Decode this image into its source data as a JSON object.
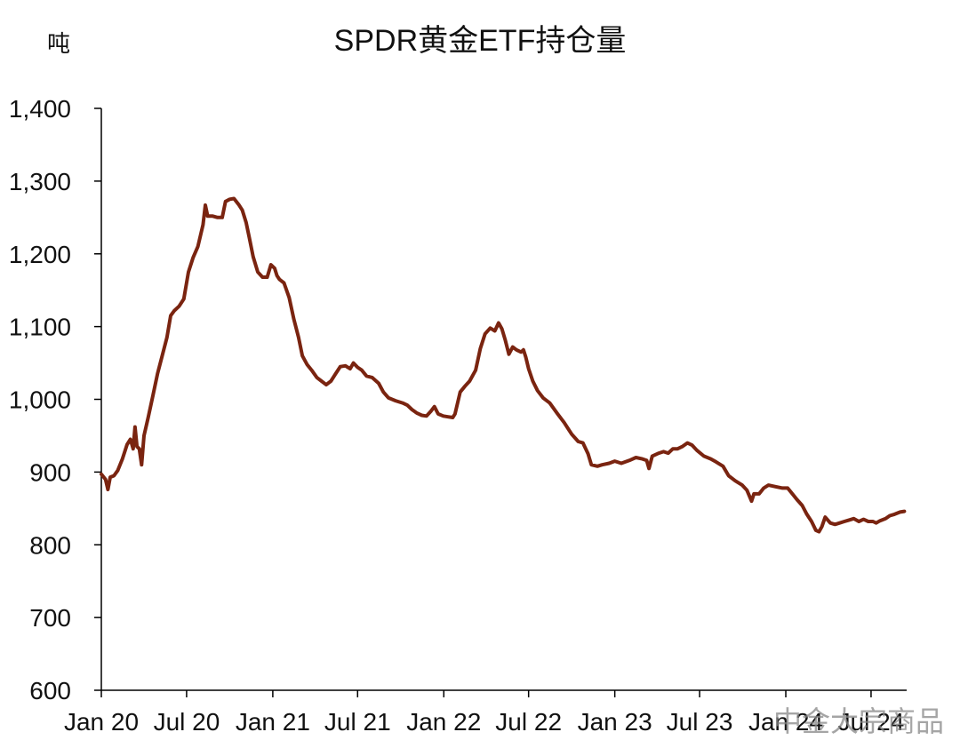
{
  "watermark": "中金大宗商品",
  "colors": {
    "series": "#7a2410",
    "axis": "#000000"
  },
  "chart_data": {
    "type": "line",
    "title": "SPDR黄金ETF持仓量",
    "ylabel": "吨",
    "xlabel": "",
    "ylim": [
      600,
      1400
    ],
    "yticks": [
      600,
      700,
      800,
      900,
      1000,
      1100,
      1200,
      1300,
      1400
    ],
    "ytick_labels": [
      "600",
      "700",
      "800",
      "900",
      "1,000",
      "1,100",
      "1,200",
      "1,300",
      "1,400"
    ],
    "xlim": [
      "2020-01-01",
      "2024-09-15"
    ],
    "xticks": [
      "2020-01-01",
      "2020-07-01",
      "2021-01-01",
      "2021-07-01",
      "2022-01-01",
      "2022-07-01",
      "2023-01-01",
      "2023-07-01",
      "2024-01-01",
      "2024-07-01"
    ],
    "xtick_labels": [
      "Jan 20",
      "Jul 20",
      "Jan 21",
      "Jul 21",
      "Jan 22",
      "Jul 22",
      "Jan 23",
      "Jul 23",
      "Jan 24",
      "Jul 24"
    ],
    "grid": false,
    "legend": "none",
    "series": [
      {
        "points": [
          [
            "2020-01-01",
            897
          ],
          [
            "2020-01-10",
            890
          ],
          [
            "2020-01-15",
            876
          ],
          [
            "2020-01-20",
            893
          ],
          [
            "2020-01-28",
            895
          ],
          [
            "2020-02-05",
            902
          ],
          [
            "2020-02-15",
            918
          ],
          [
            "2020-02-25",
            938
          ],
          [
            "2020-03-03",
            945
          ],
          [
            "2020-03-09",
            932
          ],
          [
            "2020-03-13",
            962
          ],
          [
            "2020-03-17",
            935
          ],
          [
            "2020-03-22",
            932
          ],
          [
            "2020-03-27",
            910
          ],
          [
            "2020-04-01",
            950
          ],
          [
            "2020-04-10",
            975
          ],
          [
            "2020-04-20",
            1005
          ],
          [
            "2020-04-30",
            1035
          ],
          [
            "2020-05-10",
            1060
          ],
          [
            "2020-05-20",
            1085
          ],
          [
            "2020-05-28",
            1115
          ],
          [
            "2020-06-05",
            1122
          ],
          [
            "2020-06-15",
            1128
          ],
          [
            "2020-06-25",
            1138
          ],
          [
            "2020-07-05",
            1175
          ],
          [
            "2020-07-15",
            1195
          ],
          [
            "2020-07-25",
            1210
          ],
          [
            "2020-08-05",
            1240
          ],
          [
            "2020-08-10",
            1267
          ],
          [
            "2020-08-15",
            1252
          ],
          [
            "2020-08-25",
            1252
          ],
          [
            "2020-09-05",
            1250
          ],
          [
            "2020-09-15",
            1250
          ],
          [
            "2020-09-22",
            1272
          ],
          [
            "2020-10-01",
            1275
          ],
          [
            "2020-10-10",
            1276
          ],
          [
            "2020-10-20",
            1268
          ],
          [
            "2020-10-28",
            1260
          ],
          [
            "2020-11-05",
            1243
          ],
          [
            "2020-11-12",
            1222
          ],
          [
            "2020-11-20",
            1196
          ],
          [
            "2020-11-30",
            1175
          ],
          [
            "2020-12-10",
            1168
          ],
          [
            "2020-12-20",
            1168
          ],
          [
            "2020-12-28",
            1185
          ],
          [
            "2021-01-05",
            1180
          ],
          [
            "2021-01-10",
            1170
          ],
          [
            "2021-01-15",
            1165
          ],
          [
            "2021-01-25",
            1160
          ],
          [
            "2021-02-05",
            1140
          ],
          [
            "2021-02-15",
            1110
          ],
          [
            "2021-02-25",
            1085
          ],
          [
            "2021-03-05",
            1060
          ],
          [
            "2021-03-15",
            1048
          ],
          [
            "2021-03-25",
            1040
          ],
          [
            "2021-04-05",
            1030
          ],
          [
            "2021-04-15",
            1025
          ],
          [
            "2021-04-25",
            1020
          ],
          [
            "2021-05-05",
            1025
          ],
          [
            "2021-05-15",
            1035
          ],
          [
            "2021-05-25",
            1045
          ],
          [
            "2021-06-05",
            1046
          ],
          [
            "2021-06-15",
            1042
          ],
          [
            "2021-06-22",
            1050
          ],
          [
            "2021-07-01",
            1044
          ],
          [
            "2021-07-10",
            1040
          ],
          [
            "2021-07-20",
            1032
          ],
          [
            "2021-08-01",
            1030
          ],
          [
            "2021-08-15",
            1022
          ],
          [
            "2021-08-25",
            1010
          ],
          [
            "2021-09-05",
            1002
          ],
          [
            "2021-09-20",
            998
          ],
          [
            "2021-10-05",
            995
          ],
          [
            "2021-10-15",
            992
          ],
          [
            "2021-10-25",
            986
          ],
          [
            "2021-11-05",
            981
          ],
          [
            "2021-11-15",
            978
          ],
          [
            "2021-11-25",
            977
          ],
          [
            "2021-12-05",
            984
          ],
          [
            "2021-12-12",
            990
          ],
          [
            "2021-12-20",
            980
          ],
          [
            "2021-12-31",
            977
          ],
          [
            "2022-01-10",
            976
          ],
          [
            "2022-01-20",
            975
          ],
          [
            "2022-01-25",
            980
          ],
          [
            "2022-02-05",
            1010
          ],
          [
            "2022-02-15",
            1018
          ],
          [
            "2022-02-25",
            1025
          ],
          [
            "2022-03-10",
            1040
          ],
          [
            "2022-03-20",
            1070
          ],
          [
            "2022-03-30",
            1090
          ],
          [
            "2022-04-10",
            1098
          ],
          [
            "2022-04-20",
            1094
          ],
          [
            "2022-04-28",
            1105
          ],
          [
            "2022-05-05",
            1097
          ],
          [
            "2022-05-12",
            1082
          ],
          [
            "2022-05-20",
            1062
          ],
          [
            "2022-05-28",
            1072
          ],
          [
            "2022-06-05",
            1068
          ],
          [
            "2022-06-15",
            1065
          ],
          [
            "2022-06-20",
            1068
          ],
          [
            "2022-06-25",
            1058
          ],
          [
            "2022-07-01",
            1042
          ],
          [
            "2022-07-10",
            1025
          ],
          [
            "2022-07-20",
            1012
          ],
          [
            "2022-08-01",
            1002
          ],
          [
            "2022-08-15",
            995
          ],
          [
            "2022-09-01",
            980
          ],
          [
            "2022-09-15",
            968
          ],
          [
            "2022-10-01",
            952
          ],
          [
            "2022-10-15",
            942
          ],
          [
            "2022-10-25",
            940
          ],
          [
            "2022-11-05",
            925
          ],
          [
            "2022-11-12",
            910
          ],
          [
            "2022-11-25",
            908
          ],
          [
            "2022-12-05",
            910
          ],
          [
            "2022-12-20",
            912
          ],
          [
            "2023-01-01",
            915
          ],
          [
            "2023-01-15",
            912
          ],
          [
            "2023-02-01",
            916
          ],
          [
            "2023-02-15",
            920
          ],
          [
            "2023-03-01",
            918
          ],
          [
            "2023-03-10",
            916
          ],
          [
            "2023-03-15",
            905
          ],
          [
            "2023-03-22",
            922
          ],
          [
            "2023-04-05",
            926
          ],
          [
            "2023-04-15",
            928
          ],
          [
            "2023-04-25",
            926
          ],
          [
            "2023-05-05",
            932
          ],
          [
            "2023-05-15",
            932
          ],
          [
            "2023-05-25",
            935
          ],
          [
            "2023-06-05",
            940
          ],
          [
            "2023-06-15",
            937
          ],
          [
            "2023-06-25",
            930
          ],
          [
            "2023-07-10",
            922
          ],
          [
            "2023-07-25",
            918
          ],
          [
            "2023-08-05",
            914
          ],
          [
            "2023-08-20",
            908
          ],
          [
            "2023-09-01",
            895
          ],
          [
            "2023-09-15",
            888
          ],
          [
            "2023-09-30",
            882
          ],
          [
            "2023-10-10",
            875
          ],
          [
            "2023-10-20",
            860
          ],
          [
            "2023-10-25",
            870
          ],
          [
            "2023-11-05",
            870
          ],
          [
            "2023-11-15",
            878
          ],
          [
            "2023-11-25",
            882
          ],
          [
            "2023-12-10",
            880
          ],
          [
            "2023-12-25",
            878
          ],
          [
            "2024-01-05",
            878
          ],
          [
            "2024-01-15",
            870
          ],
          [
            "2024-01-25",
            862
          ],
          [
            "2024-02-05",
            854
          ],
          [
            "2024-02-15",
            842
          ],
          [
            "2024-02-25",
            832
          ],
          [
            "2024-03-05",
            820
          ],
          [
            "2024-03-12",
            818
          ],
          [
            "2024-03-18",
            825
          ],
          [
            "2024-03-25",
            838
          ],
          [
            "2024-04-05",
            830
          ],
          [
            "2024-04-15",
            828
          ],
          [
            "2024-04-25",
            830
          ],
          [
            "2024-05-05",
            832
          ],
          [
            "2024-05-15",
            834
          ],
          [
            "2024-05-25",
            836
          ],
          [
            "2024-06-05",
            832
          ],
          [
            "2024-06-15",
            835
          ],
          [
            "2024-06-25",
            832
          ],
          [
            "2024-07-05",
            832
          ],
          [
            "2024-07-12",
            830
          ],
          [
            "2024-07-20",
            833
          ],
          [
            "2024-08-01",
            836
          ],
          [
            "2024-08-10",
            840
          ],
          [
            "2024-08-20",
            842
          ],
          [
            "2024-09-01",
            845
          ],
          [
            "2024-09-10",
            846
          ]
        ]
      }
    ]
  }
}
